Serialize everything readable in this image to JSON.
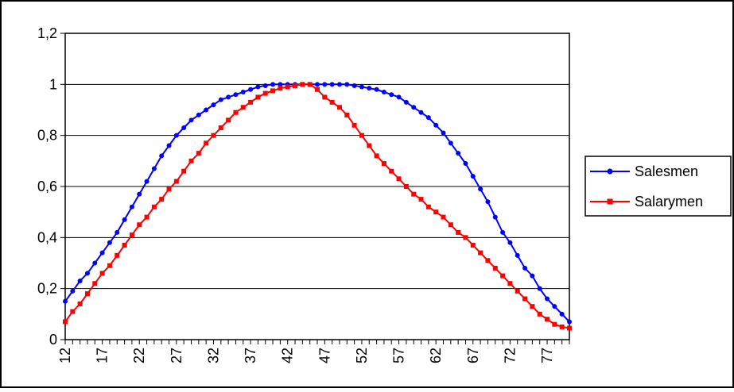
{
  "chart_data": {
    "type": "line",
    "title": "",
    "xlabel": "",
    "ylabel": "",
    "x_range": [
      12,
      80
    ],
    "ylim": [
      0,
      1.2
    ],
    "y_ticks": [
      0,
      0.2,
      0.4,
      0.6,
      0.8,
      1,
      1.2
    ],
    "y_tick_labels": [
      "0",
      "0,2",
      "0,4",
      "0,6",
      "0,8",
      "1",
      "1,2"
    ],
    "x_tick_labels": [
      "12",
      "17",
      "22",
      "27",
      "32",
      "37",
      "42",
      "47",
      "52",
      "57",
      "62",
      "67",
      "72",
      "77"
    ],
    "grid": true,
    "legend_position": "right",
    "series": [
      {
        "name": "Salesmen",
        "color": "#0000ff",
        "marker": "circle",
        "x": [
          12,
          13,
          14,
          15,
          16,
          17,
          18,
          19,
          20,
          21,
          22,
          23,
          24,
          25,
          26,
          27,
          28,
          29,
          30,
          31,
          32,
          33,
          34,
          35,
          36,
          37,
          38,
          39,
          40,
          41,
          42,
          43,
          44,
          45,
          46,
          47,
          48,
          49,
          50,
          51,
          52,
          53,
          54,
          55,
          56,
          57,
          58,
          59,
          60,
          61,
          62,
          63,
          64,
          65,
          66,
          67,
          68,
          69,
          70,
          71,
          72,
          73,
          74,
          75,
          76,
          77,
          78,
          79,
          80
        ],
        "values": [
          0.15,
          0.19,
          0.23,
          0.26,
          0.3,
          0.34,
          0.38,
          0.42,
          0.47,
          0.52,
          0.57,
          0.62,
          0.67,
          0.72,
          0.76,
          0.8,
          0.83,
          0.86,
          0.88,
          0.9,
          0.92,
          0.94,
          0.95,
          0.96,
          0.97,
          0.98,
          0.99,
          0.995,
          1.0,
          1.0,
          1.0,
          1.0,
          1.0,
          1.0,
          1.0,
          1.0,
          1.0,
          1.0,
          1.0,
          0.995,
          0.99,
          0.985,
          0.98,
          0.97,
          0.96,
          0.95,
          0.93,
          0.91,
          0.89,
          0.87,
          0.84,
          0.81,
          0.77,
          0.73,
          0.69,
          0.64,
          0.59,
          0.54,
          0.48,
          0.42,
          0.38,
          0.33,
          0.28,
          0.25,
          0.2,
          0.16,
          0.13,
          0.1,
          0.07
        ]
      },
      {
        "name": "Salarymen",
        "color": "#ff0000",
        "marker": "square",
        "x": [
          12,
          13,
          14,
          15,
          16,
          17,
          18,
          19,
          20,
          21,
          22,
          23,
          24,
          25,
          26,
          27,
          28,
          29,
          30,
          31,
          32,
          33,
          34,
          35,
          36,
          37,
          38,
          39,
          40,
          41,
          42,
          43,
          44,
          45,
          46,
          47,
          48,
          49,
          50,
          51,
          52,
          53,
          54,
          55,
          56,
          57,
          58,
          59,
          60,
          61,
          62,
          63,
          64,
          65,
          66,
          67,
          68,
          69,
          70,
          71,
          72,
          73,
          74,
          75,
          76,
          77,
          78,
          79,
          80
        ],
        "values": [
          0.07,
          0.11,
          0.14,
          0.18,
          0.22,
          0.26,
          0.29,
          0.33,
          0.37,
          0.41,
          0.45,
          0.48,
          0.52,
          0.55,
          0.59,
          0.62,
          0.66,
          0.7,
          0.73,
          0.77,
          0.8,
          0.83,
          0.86,
          0.89,
          0.91,
          0.93,
          0.95,
          0.965,
          0.975,
          0.985,
          0.99,
          0.995,
          1.0,
          1.0,
          0.98,
          0.95,
          0.93,
          0.91,
          0.88,
          0.84,
          0.8,
          0.76,
          0.72,
          0.69,
          0.66,
          0.63,
          0.6,
          0.57,
          0.55,
          0.52,
          0.5,
          0.48,
          0.45,
          0.42,
          0.4,
          0.37,
          0.34,
          0.31,
          0.28,
          0.25,
          0.22,
          0.19,
          0.16,
          0.13,
          0.1,
          0.08,
          0.06,
          0.05,
          0.045
        ]
      }
    ]
  }
}
